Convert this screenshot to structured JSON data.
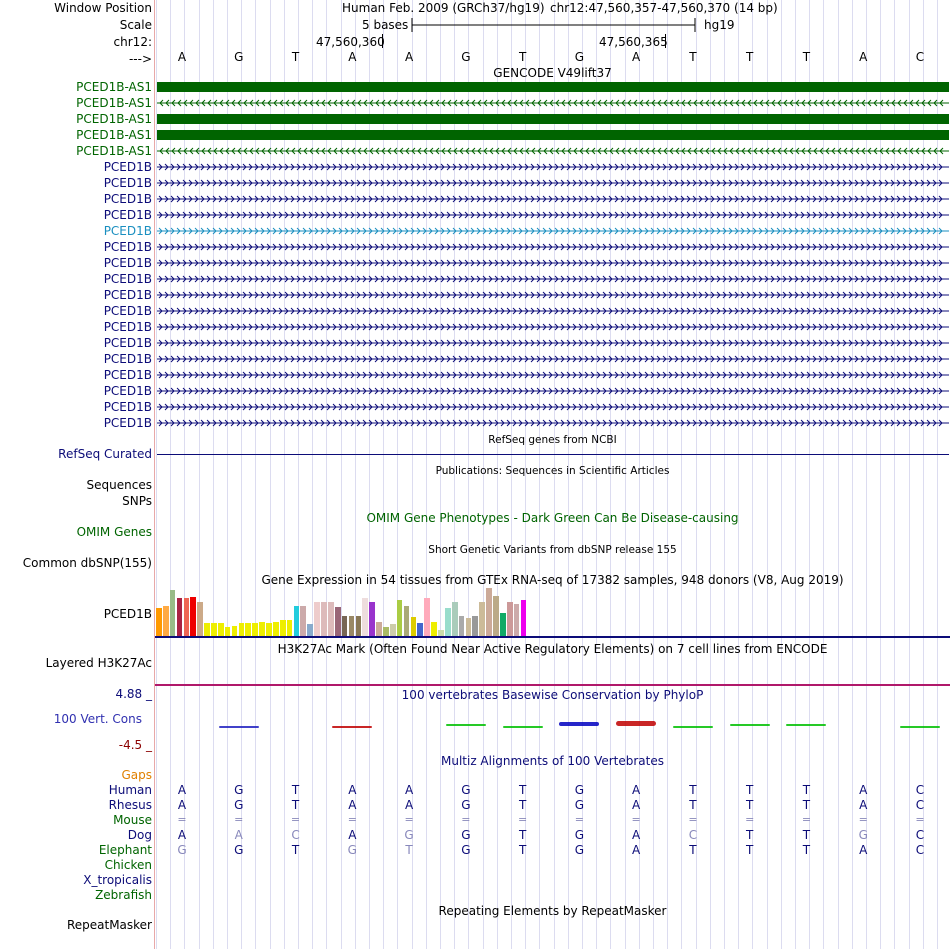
{
  "header": {
    "window_position_label": "Window Position",
    "scale_label": "Scale",
    "chr_label": "chr12:",
    "strand_label": "--->",
    "assembly": "Human Feb. 2009 (GRCh37/hg19)",
    "position": "chr12:47,560,357-47,560,370 (14 bp)",
    "scale_text": "5 bases",
    "scale_db": "hg19",
    "pos_tick1": "47,560,360",
    "pos_tick2": "47,560,365"
  },
  "bases": [
    "A",
    "G",
    "T",
    "A",
    "A",
    "G",
    "T",
    "G",
    "A",
    "T",
    "T",
    "T",
    "A",
    "C"
  ],
  "gencode": {
    "title": "GENCODE V49lift37",
    "tracks": [
      {
        "name": "PCED1B-AS1",
        "style": "solid",
        "color": "#006400"
      },
      {
        "name": "PCED1B-AS1",
        "style": "left",
        "color": "#006400"
      },
      {
        "name": "PCED1B-AS1",
        "style": "solid",
        "color": "#006400"
      },
      {
        "name": "PCED1B-AS1",
        "style": "solid",
        "color": "#006400"
      },
      {
        "name": "PCED1B-AS1",
        "style": "left",
        "color": "#006400"
      },
      {
        "name": "PCED1B",
        "style": "right",
        "color": "#0c0c78"
      },
      {
        "name": "PCED1B",
        "style": "right",
        "color": "#0c0c78"
      },
      {
        "name": "PCED1B",
        "style": "right",
        "color": "#0c0c78"
      },
      {
        "name": "PCED1B",
        "style": "right",
        "color": "#0c0c78"
      },
      {
        "name": "PCED1B",
        "style": "right",
        "color": "#1a8fc0"
      },
      {
        "name": "PCED1B",
        "style": "right",
        "color": "#0c0c78"
      },
      {
        "name": "PCED1B",
        "style": "right",
        "color": "#0c0c78"
      },
      {
        "name": "PCED1B",
        "style": "right",
        "color": "#0c0c78"
      },
      {
        "name": "PCED1B",
        "style": "right",
        "color": "#0c0c78"
      },
      {
        "name": "PCED1B",
        "style": "right",
        "color": "#0c0c78"
      },
      {
        "name": "PCED1B",
        "style": "right",
        "color": "#0c0c78"
      },
      {
        "name": "PCED1B",
        "style": "right",
        "color": "#0c0c78"
      },
      {
        "name": "PCED1B",
        "style": "right",
        "color": "#0c0c78"
      },
      {
        "name": "PCED1B",
        "style": "right",
        "color": "#0c0c78"
      },
      {
        "name": "PCED1B",
        "style": "right",
        "color": "#0c0c78"
      },
      {
        "name": "PCED1B",
        "style": "right",
        "color": "#0c0c78"
      },
      {
        "name": "PCED1B",
        "style": "right",
        "color": "#0c0c78"
      }
    ]
  },
  "refseq": {
    "title": "RefSeq genes from NCBI",
    "label": "RefSeq Curated"
  },
  "pubs": {
    "title": "Publications: Sequences in Scientific Articles",
    "label1": "Sequences",
    "label2": "SNPs"
  },
  "omim": {
    "title": "OMIM Gene Phenotypes - Dark Green Can Be Disease-causing",
    "label": "OMIM Genes"
  },
  "dbsnp": {
    "title": "Short Genetic Variants from dbSNP release 155",
    "label": "Common dbSNP(155)"
  },
  "gtex": {
    "title": "Gene Expression in 54 tissues from GTEx RNA-seq of 17382 samples, 948 donors (V8, Aug 2019)",
    "label": "PCED1B",
    "values": [
      28,
      30,
      46,
      38,
      38,
      39,
      34,
      13,
      13,
      13,
      9,
      10,
      13,
      13,
      13,
      14,
      13,
      14,
      16,
      16,
      30,
      30,
      12,
      34,
      34,
      34,
      29,
      20,
      20,
      20,
      38,
      34,
      14,
      9,
      12,
      36,
      30,
      19,
      13,
      38,
      14,
      6,
      28,
      34,
      20,
      18,
      20,
      34,
      48,
      40,
      23,
      34,
      32,
      36
    ],
    "colors": [
      "#ff9900",
      "#ffaa44",
      "#99bb88",
      "#aa2244",
      "#ee6655",
      "#ee0000",
      "#ccaa88",
      "#eeee00",
      "#eeee00",
      "#eeee00",
      "#eeee00",
      "#eeee00",
      "#eeee00",
      "#eeee00",
      "#eeee00",
      "#eeee00",
      "#eeee00",
      "#eeee00",
      "#eeee00",
      "#eeee00",
      "#22ccdd",
      "#ccaaaa",
      "#88aacc",
      "#eecccc",
      "#ddbbbb",
      "#ddbbbb",
      "#996677",
      "#776655",
      "#998866",
      "#887755",
      "#eedddd",
      "#9933cc",
      "#ccaa99",
      "#aabb66",
      "#ccccaa",
      "#aacc44",
      "#aaaa77",
      "#ddcc00",
      "#4466cc",
      "#ffaabb",
      "#eeee00",
      "#ccddaa",
      "#99ddcc",
      "#aaccbb",
      "#aaaaaa",
      "#ccbb99",
      "#999999",
      "#ccbb99",
      "#ccaa99",
      "#bbaa88",
      "#11aa66",
      "#cc9999",
      "#ccaaaa",
      "#ee00ee"
    ]
  },
  "h3k27ac": {
    "title": "H3K27Ac Mark (Often Found Near Active Regulatory Elements) on 7 cell lines from ENCODE",
    "label": "Layered H3K27Ac"
  },
  "phylop": {
    "title": "100 vertebrates Basewise Conservation by PhyloP",
    "label": "100 Vert. Cons",
    "max": "4.88 _",
    "min": "-4.5 _",
    "values": [
      0,
      -0.4,
      0,
      -0.2,
      0,
      0.5,
      -0.2,
      1.0,
      1.2,
      -0.3,
      0.5,
      0.3,
      0,
      -0.1
    ],
    "colors": [
      "#c00000",
      "#2020c0",
      "#c00000",
      "#c00000",
      "#c00000",
      "#00c000",
      "#00c000",
      "#0000c0",
      "#c00000",
      "#00c000",
      "#00c000",
      "#00c000",
      "#c00000",
      "#00c000"
    ]
  },
  "multiz": {
    "title": "Multiz Alignments of 100 Vertebrates",
    "gaps_label": "Gaps",
    "species": [
      {
        "name": "Human",
        "color": "#0c0c78",
        "row": "AGTAAGTGATTTAC"
      },
      {
        "name": "Rhesus",
        "color": "#0c0c78",
        "row": "AGTAAGTGATTTAC"
      },
      {
        "name": "Mouse",
        "color": "#006400",
        "row": "=============="
      },
      {
        "name": "Dog",
        "color": "#0c0c78",
        "row": "AACAGGTGACTTGC"
      },
      {
        "name": "Elephant",
        "color": "#006400",
        "row": "GGTGTGTGATTTAC"
      },
      {
        "name": "Chicken",
        "color": "#006400",
        "row": ""
      },
      {
        "name": "X_tropicalis",
        "color": "#0c0c78",
        "row": ""
      },
      {
        "name": "Zebrafish",
        "color": "#006400",
        "row": ""
      }
    ]
  },
  "repeatmasker": {
    "title": "Repeating Elements by RepeatMasker",
    "label": "RepeatMasker"
  }
}
